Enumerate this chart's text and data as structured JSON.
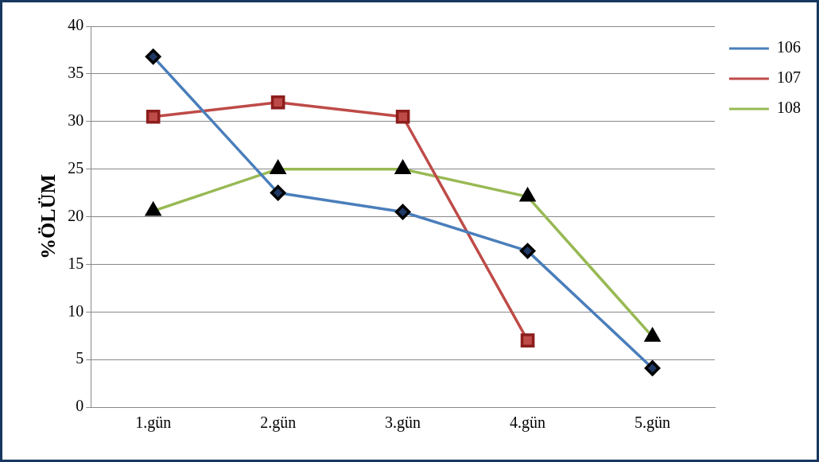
{
  "chart_data": {
    "type": "line",
    "ylabel": "%ÖLÜM",
    "categories": [
      "1.gün",
      "2.gün",
      "3.gün",
      "4.gün",
      "5.gün"
    ],
    "series": [
      {
        "name": "106",
        "color": "#4a7ebb",
        "marker": "diamond",
        "values": [
          36.8,
          22.5,
          20.5,
          16.4,
          4.1
        ]
      },
      {
        "name": "107",
        "color": "#be4b48",
        "marker": "square",
        "values": [
          30.5,
          32.0,
          30.5,
          7.0,
          null
        ]
      },
      {
        "name": "108",
        "color": "#98b954",
        "marker": "triangle",
        "values": [
          20.6,
          25.0,
          25.0,
          22.1,
          7.4
        ]
      }
    ],
    "ylim": [
      0,
      40
    ],
    "yticks": [
      0,
      5,
      10,
      15,
      20,
      25,
      30,
      35,
      40
    ],
    "grid": "y",
    "legend": "top right"
  }
}
